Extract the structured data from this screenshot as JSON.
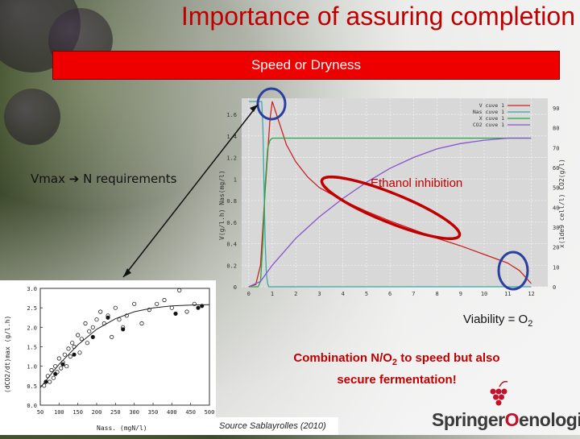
{
  "title": "Importance of assuring completion",
  "banner": "Speed or Dryness",
  "vmax_left": "Vmax",
  "vmax_right": "N requirements",
  "ethanol_label": "Ethanol inhibition",
  "viability_text": "Viability = O",
  "viability_sub": "2",
  "combination": {
    "part1": "Combination N/O",
    "sub": "2",
    "part2": " to speed but also",
    "line2": "secure fermentation!"
  },
  "source": "Source Sablayrolles (2010)",
  "logo": {
    "text_left": "Springer",
    "text_right": "enologie",
    "o_glyph": "O"
  },
  "colors": {
    "accent_red": "#c00000",
    "banner_red": "#ee0000",
    "circle_blue": "#2a3fa0",
    "ellipse_red": "#c00000",
    "series_v": "#cc2222",
    "series_nass": "#3aa8a8",
    "series_x": "#22aa44",
    "series_co2": "#8855cc"
  },
  "chart_data": [
    {
      "type": "line",
      "ylabel": "V(g/l.h) Nas(mg/l)",
      "y2label": "x(1de9 cell/l) CO2(g/l)",
      "x_ticks": [
        "0",
        "1",
        "2",
        "3",
        "4",
        "5",
        "6",
        "7",
        "8",
        "9",
        "10",
        "11",
        "12"
      ],
      "y_ticks": [
        "0",
        "0.2",
        "0.4",
        "0.6",
        "0.8",
        "1",
        "1.2",
        "1.4",
        "1.6"
      ],
      "y2_ticks": [
        "0",
        "10",
        "20",
        "30",
        "40",
        "50",
        "60",
        "70",
        "80",
        "90"
      ],
      "xlim": [
        -0.3,
        12.7
      ],
      "ylim": [
        0,
        1.75
      ],
      "legend": [
        "V cuve 1",
        "Nas cuve 1",
        "X cuve 1",
        "CO2 cuve 1"
      ],
      "legend_position": "top-right",
      "series": [
        {
          "name": "V cuve 1",
          "x": [
            0,
            0.3,
            0.5,
            0.7,
            0.9,
            1.0,
            1.3,
            1.6,
            2,
            2.5,
            3,
            4,
            5,
            6,
            7,
            8,
            9,
            10,
            11,
            11.5,
            12
          ],
          "y": [
            0,
            0.02,
            0.2,
            0.9,
            1.55,
            1.72,
            1.52,
            1.32,
            1.16,
            1.02,
            0.92,
            0.8,
            0.7,
            0.61,
            0.53,
            0.45,
            0.38,
            0.3,
            0.22,
            0.15,
            0.03
          ]
        },
        {
          "name": "Nas cuve 1",
          "x": [
            0,
            0.55,
            0.6,
            0.65,
            0.7,
            0.75,
            0.8,
            0.85,
            1.0,
            12
          ],
          "y": [
            1.72,
            1.72,
            1.5,
            0.9,
            0.4,
            0.12,
            0.03,
            0,
            0,
            0
          ]
        },
        {
          "name": "X cuve 1",
          "x": [
            0,
            0.4,
            0.5,
            0.6,
            0.7,
            0.8,
            0.9,
            1.0,
            1.2,
            12
          ],
          "y": [
            0,
            0,
            0.05,
            0.4,
            0.95,
            1.28,
            1.36,
            1.38,
            1.38,
            1.38
          ]
        },
        {
          "name": "CO2 cuve 1",
          "x": [
            0,
            0.5,
            1,
            2,
            3,
            4,
            5,
            6,
            7,
            8,
            9,
            10,
            11,
            11.5,
            12
          ],
          "y": [
            0,
            0.05,
            0.2,
            0.45,
            0.65,
            0.82,
            0.97,
            1.1,
            1.2,
            1.28,
            1.33,
            1.36,
            1.38,
            1.38,
            1.38
          ]
        }
      ]
    },
    {
      "type": "scatter",
      "xlabel": "Nass. (mgN/l)",
      "ylabel": "(dCO2/dt)max (g/l.h)",
      "x_ticks": [
        "50",
        "100",
        "150",
        "200",
        "250",
        "300",
        "350",
        "400",
        "450",
        "500"
      ],
      "y_ticks": [
        "0.0",
        "0.5",
        "1.0",
        "1.5",
        "2.0",
        "2.5",
        "3.0"
      ],
      "xlim": [
        50,
        500
      ],
      "ylim": [
        0,
        3.0
      ],
      "series": [
        {
          "marker": "open",
          "points": [
            [
              60,
              0.5
            ],
            [
              70,
              0.75
            ],
            [
              75,
              0.6
            ],
            [
              80,
              0.9
            ],
            [
              85,
              0.7
            ],
            [
              90,
              1.0
            ],
            [
              95,
              0.85
            ],
            [
              100,
              1.2
            ],
            [
              105,
              0.95
            ],
            [
              110,
              1.1
            ],
            [
              115,
              1.3
            ],
            [
              120,
              1.0
            ],
            [
              125,
              1.45
            ],
            [
              130,
              1.25
            ],
            [
              135,
              1.6
            ],
            [
              140,
              1.5
            ],
            [
              150,
              1.8
            ],
            [
              155,
              1.35
            ],
            [
              160,
              1.7
            ],
            [
              170,
              2.1
            ],
            [
              175,
              1.6
            ],
            [
              180,
              1.9
            ],
            [
              190,
              2.0
            ],
            [
              200,
              2.2
            ],
            [
              210,
              2.4
            ],
            [
              220,
              2.1
            ],
            [
              230,
              2.3
            ],
            [
              240,
              1.75
            ],
            [
              250,
              2.5
            ],
            [
              260,
              2.2
            ],
            [
              270,
              2.0
            ],
            [
              280,
              2.3
            ],
            [
              300,
              2.6
            ],
            [
              320,
              2.1
            ],
            [
              340,
              2.45
            ],
            [
              360,
              2.6
            ],
            [
              380,
              2.7
            ],
            [
              400,
              2.5
            ],
            [
              420,
              2.95
            ],
            [
              440,
              2.4
            ],
            [
              460,
              2.6
            ]
          ]
        },
        {
          "marker": "filled",
          "points": [
            [
              65,
              0.6
            ],
            [
              90,
              0.8
            ],
            [
              110,
              1.05
            ],
            [
              140,
              1.3
            ],
            [
              190,
              1.75
            ],
            [
              230,
              2.25
            ],
            [
              270,
              1.95
            ],
            [
              410,
              2.35
            ],
            [
              470,
              2.5
            ],
            [
              480,
              2.55
            ]
          ]
        }
      ],
      "fit_curve": {
        "x": [
          50,
          100,
          150,
          200,
          250,
          300,
          350,
          400,
          450,
          500
        ],
        "y": [
          0.45,
          1.05,
          1.55,
          1.95,
          2.22,
          2.4,
          2.5,
          2.55,
          2.57,
          2.58
        ]
      }
    }
  ]
}
